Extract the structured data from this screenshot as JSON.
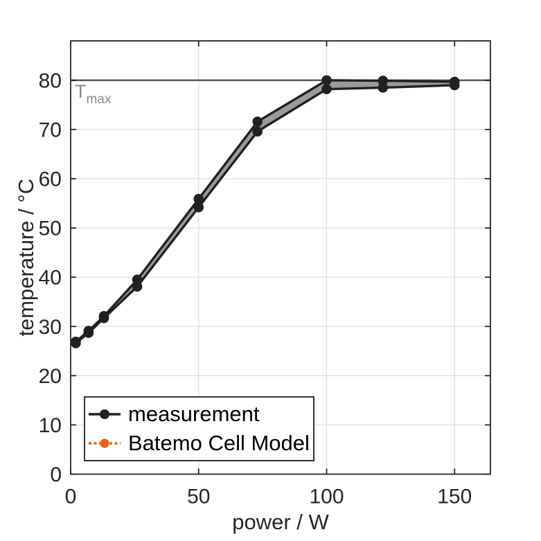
{
  "chart_data": {
    "type": "line",
    "title": "",
    "xlabel": "power / W",
    "ylabel": "temperature / °C",
    "xlim": [
      0,
      164
    ],
    "ylim": [
      0,
      88
    ],
    "x_ticks": [
      0,
      50,
      100,
      150
    ],
    "y_ticks": [
      0,
      10,
      20,
      30,
      40,
      50,
      60,
      70,
      80
    ],
    "grid": true,
    "x": [
      2,
      7,
      13,
      26,
      50,
      73,
      100,
      122,
      150
    ],
    "series": [
      {
        "name": "measurement",
        "legend_color": "#212121",
        "legend_style": "solid",
        "marker": "circle",
        "rendered_color": "#212121",
        "values": [
          26.6,
          28.7,
          31.7,
          38.1,
          54.2,
          69.6,
          78.2,
          78.5,
          79.0
        ]
      },
      {
        "name": "Batemo Cell Model",
        "legend_color": "#e8610d",
        "legend_style": "dotted",
        "marker": "circle",
        "rendered_color": "#212121",
        "values": [
          26.9,
          29.1,
          32.1,
          39.5,
          55.9,
          71.6,
          80.0,
          79.9,
          79.7
        ]
      }
    ],
    "band": {
      "fill": "#9a9a9a"
    },
    "threshold": {
      "value": 80,
      "label_main": "T",
      "label_sub": "max",
      "line_color": "#595959",
      "text_color": "#8a8a8a"
    },
    "legend": {
      "position": "bottom-left"
    },
    "colors": {
      "axis": "#262626",
      "tick_text": "#262626",
      "grid": "#dcdcdc",
      "background": "#ffffff",
      "legend_border": "#1c1c1c",
      "legend_text": "#000000"
    }
  }
}
